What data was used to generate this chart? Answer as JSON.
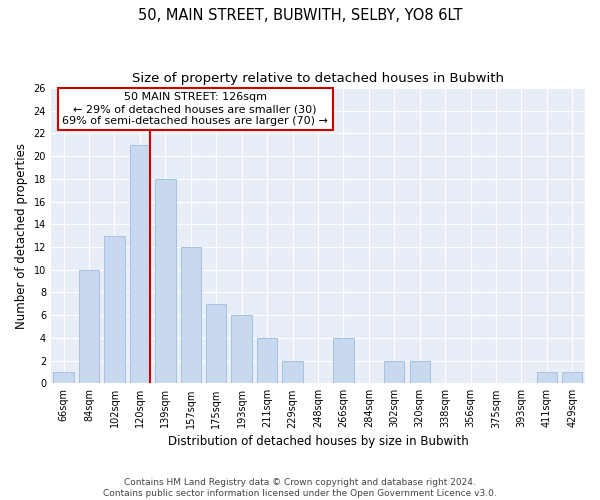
{
  "title": "50, MAIN STREET, BUBWITH, SELBY, YO8 6LT",
  "subtitle": "Size of property relative to detached houses in Bubwith",
  "xlabel": "Distribution of detached houses by size in Bubwith",
  "ylabel": "Number of detached properties",
  "categories": [
    "66sqm",
    "84sqm",
    "102sqm",
    "120sqm",
    "139sqm",
    "157sqm",
    "175sqm",
    "193sqm",
    "211sqm",
    "229sqm",
    "248sqm",
    "266sqm",
    "284sqm",
    "302sqm",
    "320sqm",
    "338sqm",
    "356sqm",
    "375sqm",
    "393sqm",
    "411sqm",
    "429sqm"
  ],
  "values": [
    1,
    10,
    13,
    21,
    18,
    12,
    7,
    6,
    4,
    2,
    0,
    4,
    0,
    2,
    2,
    0,
    0,
    0,
    0,
    1,
    1
  ],
  "bar_color": "#c8d9ef",
  "bar_edgecolor": "#a8c0e0",
  "annotation_text": "50 MAIN STREET: 126sqm\n← 29% of detached houses are smaller (30)\n69% of semi-detached houses are larger (70) →",
  "annotation_box_edgecolor": "#cc0000",
  "annotation_box_facecolor": "#ffffff",
  "ylim": [
    0,
    26
  ],
  "yticks": [
    0,
    2,
    4,
    6,
    8,
    10,
    12,
    14,
    16,
    18,
    20,
    22,
    24,
    26
  ],
  "bg_color": "#e8eef8",
  "footer1": "Contains HM Land Registry data © Crown copyright and database right 2024.",
  "footer2": "Contains public sector information licensed under the Open Government Licence v3.0.",
  "title_fontsize": 10.5,
  "subtitle_fontsize": 9.5,
  "tick_fontsize": 7,
  "ylabel_fontsize": 8.5,
  "xlabel_fontsize": 8.5,
  "annotation_fontsize": 8,
  "footer_fontsize": 6.5,
  "redline_index": 3,
  "bar_width": 0.8
}
